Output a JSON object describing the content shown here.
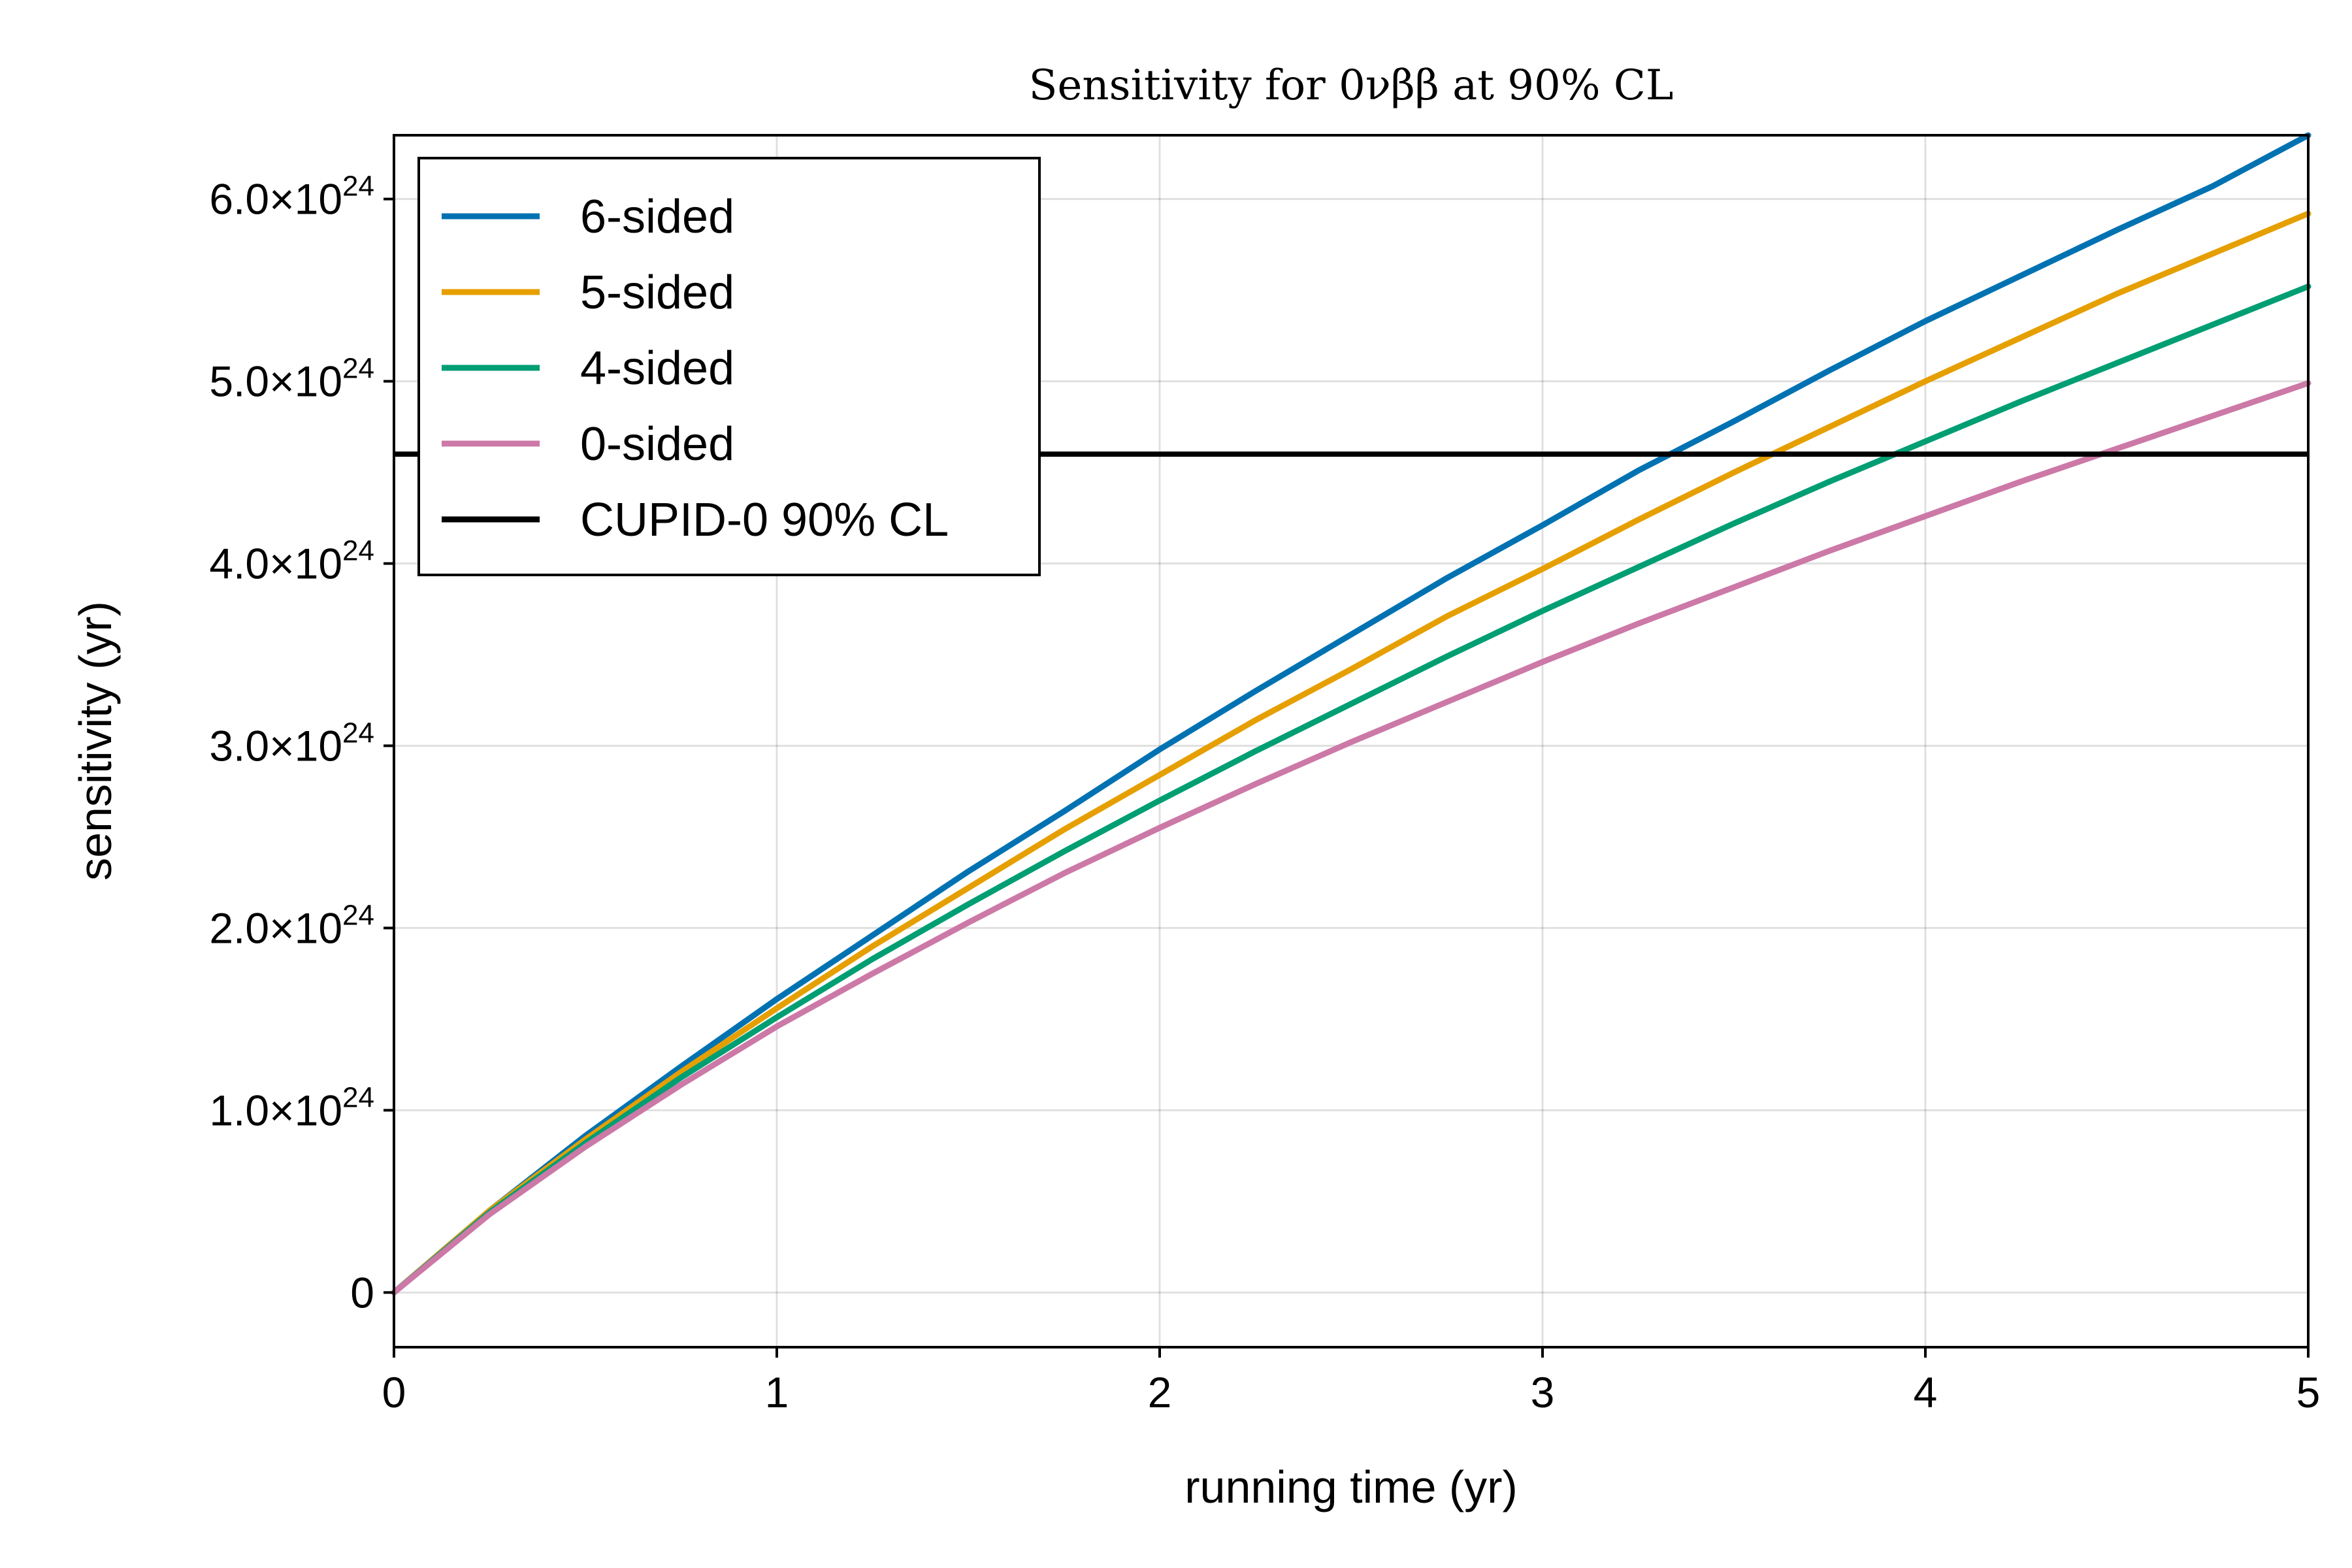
{
  "chart_data": {
    "type": "line",
    "title": "Sensitivity for 0νββ at 90% CL",
    "xlabel": "running time (yr)",
    "ylabel": "sensitivity (yr)",
    "xlim": [
      0,
      5
    ],
    "ylim": [
      -3e+23,
      6.35e+24
    ],
    "grid": true,
    "legend_position": "top-left",
    "x_ticks": [
      {
        "value": 0,
        "label": "0"
      },
      {
        "value": 1,
        "label": "1"
      },
      {
        "value": 2,
        "label": "2"
      },
      {
        "value": 3,
        "label": "3"
      },
      {
        "value": 4,
        "label": "4"
      },
      {
        "value": 5,
        "label": "5"
      }
    ],
    "y_ticks": [
      {
        "value": 0,
        "mantissa": "0",
        "exponent": ""
      },
      {
        "value": 1e+24,
        "mantissa": "1.0×10",
        "exponent": "24"
      },
      {
        "value": 2e+24,
        "mantissa": "2.0×10",
        "exponent": "24"
      },
      {
        "value": 3e+24,
        "mantissa": "3.0×10",
        "exponent": "24"
      },
      {
        "value": 4e+24,
        "mantissa": "4.0×10",
        "exponent": "24"
      },
      {
        "value": 5e+24,
        "mantissa": "5.0×10",
        "exponent": "24"
      },
      {
        "value": 6e+24,
        "mantissa": "6.0×10",
        "exponent": "24"
      }
    ],
    "x": [
      0,
      0.25,
      0.5,
      0.75,
      1.0,
      1.25,
      1.5,
      1.75,
      2.0,
      2.25,
      2.5,
      2.75,
      3.0,
      3.25,
      3.5,
      3.75,
      4.0,
      4.25,
      4.5,
      4.75,
      5.0
    ],
    "series": [
      {
        "name": "6-sided",
        "color": "#0072b2",
        "values": [
          0,
          4.5e+23,
          8.6e+23,
          1.24e+24,
          1.61e+24,
          1.96e+24,
          2.31e+24,
          2.64e+24,
          2.98e+24,
          3.3e+24,
          3.61e+24,
          3.92e+24,
          4.21e+24,
          4.51e+24,
          4.78e+24,
          5.06e+24,
          5.33e+24,
          5.58e+24,
          5.83e+24,
          6.07e+24,
          6.35e+24
        ]
      },
      {
        "name": "5-sided",
        "color": "#e69f00",
        "values": [
          0,
          4.5e+23,
          8.4e+23,
          1.21e+24,
          1.56e+24,
          1.9e+24,
          2.22e+24,
          2.54e+24,
          2.84e+24,
          3.14e+24,
          3.42e+24,
          3.71e+24,
          3.97e+24,
          4.24e+24,
          4.5e+24,
          4.75e+24,
          5e+24,
          5.24e+24,
          5.48e+24,
          5.7e+24,
          5.92e+24
        ]
      },
      {
        "name": "4-sided",
        "color": "#009e73",
        "values": [
          0,
          4.4e+23,
          8.2e+23,
          1.18e+24,
          1.51e+24,
          1.83e+24,
          2.13e+24,
          2.42e+24,
          2.7e+24,
          2.97e+24,
          3.23e+24,
          3.49e+24,
          3.74e+24,
          3.98e+24,
          4.22e+24,
          4.45e+24,
          4.67e+24,
          4.89e+24,
          5.1e+24,
          5.31e+24,
          5.52e+24
        ]
      },
      {
        "name": "0-sided",
        "color": "#cc79a7",
        "values": [
          0,
          4.3e+23,
          8e+23,
          1.14e+24,
          1.46e+24,
          1.75e+24,
          2.03e+24,
          2.3e+24,
          2.55e+24,
          2.79e+24,
          3.02e+24,
          3.24e+24,
          3.46e+24,
          3.67e+24,
          3.87e+24,
          4.07e+24,
          4.26e+24,
          4.45e+24,
          4.63e+24,
          4.81e+24,
          4.99e+24
        ]
      },
      {
        "name": "CUPID-0 90% CL",
        "color": "#000000",
        "horizontal_line": 4.6e+24
      }
    ]
  }
}
